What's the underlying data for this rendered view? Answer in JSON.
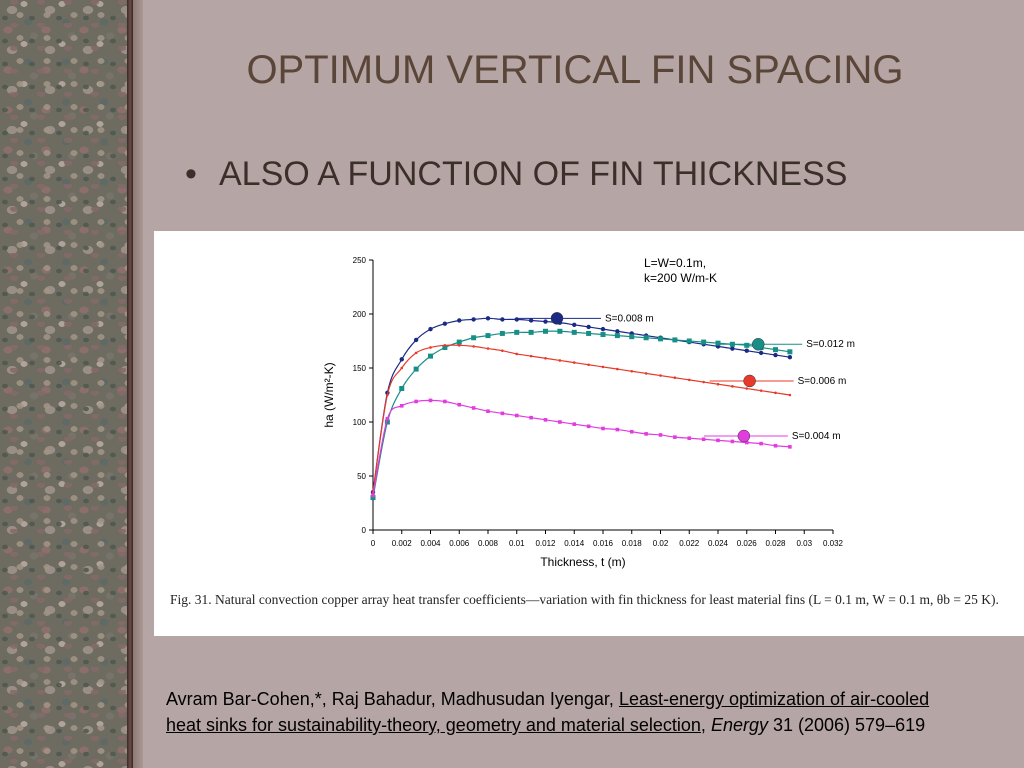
{
  "slide": {
    "title": "OPTIMUM VERTICAL FIN SPACING",
    "bullet": "ALSO A FUNCTION OF FIN THICKNESS"
  },
  "figure": {
    "caption_lead": "Fig. 31. Natural convection copper array heat transfer coefficients—variation with fin thickness for least material fins",
    "caption_params": "(L = 0.1 m, W = 0.1 m, θb = 25 K)."
  },
  "reference": {
    "authors": "Avram Bar-Cohen,*, Raj Bahadur, Madhusudan Iyengar, ",
    "title": "Least-energy optimization of air-cooled heat sinks for sustainability-theory, geometry and material selection",
    "sep": ", ",
    "journal": "Energy",
    "volume": " 31 (2006) 579–619"
  },
  "chart_data": {
    "type": "line",
    "xlabel": "Thickness, t (m)",
    "ylabel": "ha (W/m²-K)",
    "xlim": [
      0,
      0.032
    ],
    "ylim": [
      0,
      250
    ],
    "xticks": [
      "0",
      "0.002",
      "0.004",
      "0.006",
      "0.008",
      "0.01",
      "0.012",
      "0.014",
      "0.016",
      "0.018",
      "0.02",
      "0.022",
      "0.024",
      "0.026",
      "0.028",
      "0.03",
      "0.032"
    ],
    "yticks": [
      "0",
      "50",
      "100",
      "150",
      "200",
      "250"
    ],
    "annotation": [
      "L=W=0.1m,",
      "k=200 W/m-K"
    ],
    "series": [
      {
        "name": "S=0.008 m",
        "color": "#1c2a86",
        "marker": "circle",
        "x": [
          0,
          0.001,
          0.002,
          0.003,
          0.004,
          0.005,
          0.006,
          0.007,
          0.008,
          0.009,
          0.01,
          0.011,
          0.012,
          0.013,
          0.014,
          0.015,
          0.016,
          0.017,
          0.018,
          0.019,
          0.02,
          0.021,
          0.022,
          0.023,
          0.024,
          0.025,
          0.026,
          0.027,
          0.028,
          0.029
        ],
        "y": [
          35,
          127,
          158,
          176,
          186,
          191,
          194,
          195,
          196,
          195,
          195,
          194,
          193,
          192,
          190,
          188,
          186,
          184,
          182,
          180,
          178,
          176,
          174,
          172,
          170,
          168,
          166,
          164,
          162,
          160
        ],
        "label_at": [
          0.0128,
          196
        ]
      },
      {
        "name": "S=0.012 m",
        "color": "#178f86",
        "marker": "square",
        "x": [
          0,
          0.001,
          0.002,
          0.003,
          0.004,
          0.005,
          0.006,
          0.007,
          0.008,
          0.009,
          0.01,
          0.011,
          0.012,
          0.013,
          0.014,
          0.015,
          0.016,
          0.017,
          0.018,
          0.019,
          0.02,
          0.021,
          0.022,
          0.023,
          0.024,
          0.025,
          0.026,
          0.027,
          0.028,
          0.029
        ],
        "y": [
          30,
          100,
          131,
          149,
          161,
          169,
          174,
          178,
          180,
          182,
          183,
          183,
          184,
          184,
          183,
          182,
          181,
          180,
          179,
          178,
          177,
          176,
          175,
          174,
          173,
          172,
          171,
          169,
          167,
          165
        ],
        "label_at": [
          0.0268,
          172
        ]
      },
      {
        "name": "S=0.006 m",
        "color": "#e83a2a",
        "marker": "dot",
        "x": [
          0,
          0.001,
          0.002,
          0.003,
          0.004,
          0.005,
          0.006,
          0.007,
          0.008,
          0.009,
          0.01,
          0.011,
          0.012,
          0.013,
          0.014,
          0.015,
          0.016,
          0.017,
          0.018,
          0.019,
          0.02,
          0.021,
          0.022,
          0.023,
          0.024,
          0.025,
          0.026,
          0.027,
          0.028,
          0.029
        ],
        "y": [
          35,
          125,
          150,
          164,
          169,
          171,
          171,
          170,
          168,
          166,
          163,
          161,
          159,
          157,
          155,
          153,
          151,
          149,
          147,
          145,
          143,
          141,
          139,
          137,
          135,
          133,
          131,
          129,
          127,
          125
        ],
        "label_at": [
          0.0262,
          138
        ]
      },
      {
        "name": "S=0.004 m",
        "color": "#e23ce0",
        "marker": "square-small",
        "x": [
          0,
          0.001,
          0.002,
          0.003,
          0.004,
          0.005,
          0.006,
          0.007,
          0.008,
          0.009,
          0.01,
          0.011,
          0.012,
          0.013,
          0.014,
          0.015,
          0.016,
          0.017,
          0.018,
          0.019,
          0.02,
          0.021,
          0.022,
          0.023,
          0.024,
          0.025,
          0.026,
          0.027,
          0.028,
          0.029
        ],
        "y": [
          32,
          103,
          115,
          119,
          120,
          119,
          116,
          113,
          110,
          108,
          106,
          104,
          102,
          100,
          98,
          96,
          94,
          93,
          91,
          89,
          88,
          86,
          85,
          84,
          83,
          82,
          81,
          80,
          78,
          77
        ],
        "label_at": [
          0.0258,
          87
        ]
      }
    ]
  }
}
